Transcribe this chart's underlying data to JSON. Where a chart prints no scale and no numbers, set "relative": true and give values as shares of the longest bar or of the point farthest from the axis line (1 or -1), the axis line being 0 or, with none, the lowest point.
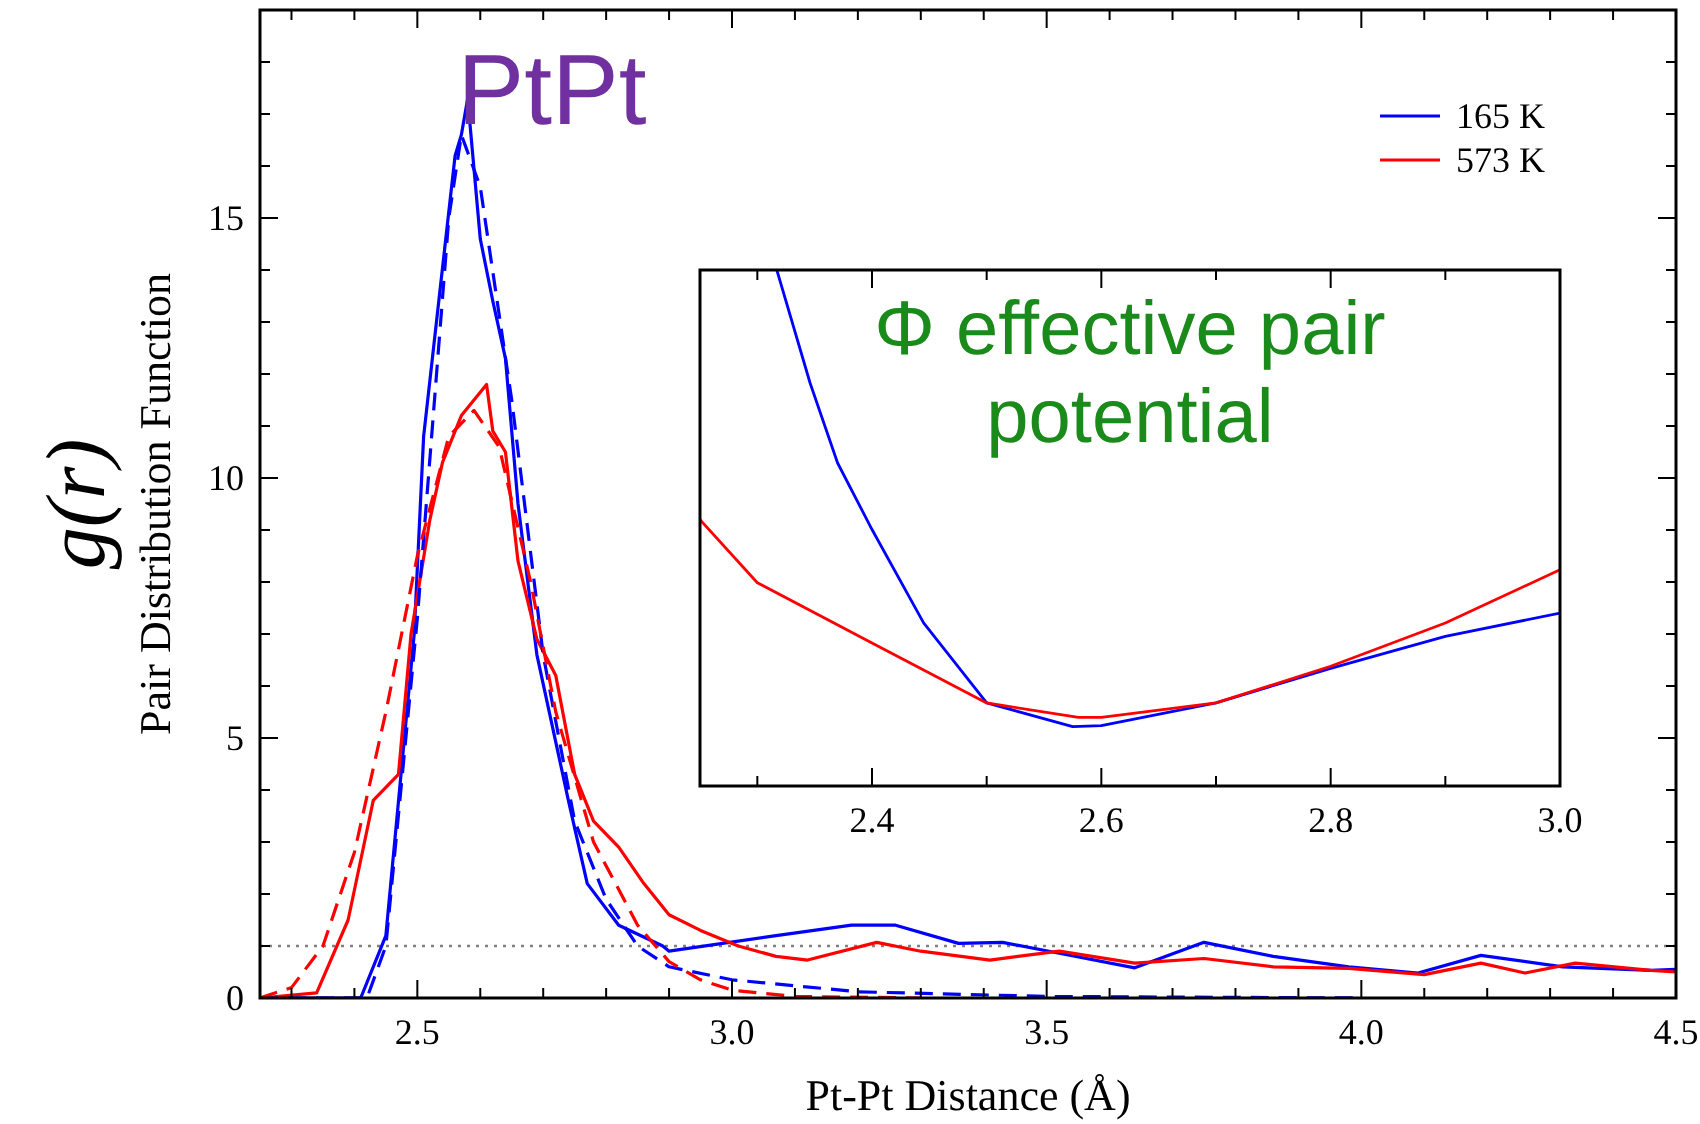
{
  "chart_data": [
    {
      "type": "line",
      "title": "PtPt",
      "xlabel": "Pt-Pt Distance (Å)",
      "ylabel": "Pair Distribution Function",
      "annotations": [
        "g(r)"
      ],
      "xlim": [
        2.25,
        4.5
      ],
      "ylim": [
        0,
        19
      ],
      "xticks": [
        {
          "value": 2.3,
          "label": null
        },
        {
          "value": 2.4,
          "label": null
        },
        2.5,
        {
          "value": 2.6,
          "label": null
        },
        {
          "value": 2.7,
          "label": null
        },
        {
          "value": 2.8,
          "label": null
        },
        {
          "value": 2.9,
          "label": null
        },
        {
          "value": 3.0,
          "label": "3.0"
        },
        {
          "value": 3.1,
          "label": null
        },
        {
          "value": 3.2,
          "label": null
        },
        {
          "value": 3.3,
          "label": null
        },
        {
          "value": 3.4,
          "label": null
        },
        3.5,
        {
          "value": 3.6,
          "label": null
        },
        {
          "value": 3.7,
          "label": null
        },
        {
          "value": 3.8,
          "label": null
        },
        {
          "value": 3.9,
          "label": null
        },
        {
          "value": 4.0,
          "label": "4.0"
        },
        {
          "value": 4.1,
          "label": null
        },
        {
          "value": 4.2,
          "label": null
        },
        {
          "value": 4.3,
          "label": null
        },
        {
          "value": 4.4,
          "label": null
        },
        4.5
      ],
      "yticks": [
        0,
        {
          "value": 1,
          "label": null
        },
        {
          "value": 2,
          "label": null
        },
        {
          "value": 3,
          "label": null
        },
        {
          "value": 4,
          "label": null
        },
        5,
        {
          "value": 6,
          "label": null
        },
        {
          "value": 7,
          "label": null
        },
        {
          "value": 8,
          "label": null
        },
        {
          "value": 9,
          "label": null
        },
        10,
        {
          "value": 11,
          "label": null
        },
        {
          "value": 12,
          "label": null
        },
        {
          "value": 13,
          "label": null
        },
        {
          "value": 14,
          "label": null
        },
        15,
        {
          "value": 16,
          "label": null
        },
        {
          "value": 17,
          "label": null
        },
        {
          "value": 18,
          "label": null
        }
      ],
      "legend": "top right",
      "ref_lines": [
        {
          "axis": "y",
          "value": 1,
          "color": "#808080",
          "line_style": "dotted"
        }
      ],
      "series": [
        {
          "name": "165 K",
          "color": "#0000ff",
          "line_style": "solid",
          "x": [
            2.25,
            2.41,
            2.45,
            2.495,
            2.51,
            2.56,
            2.57,
            2.58,
            2.6,
            2.62,
            2.64,
            2.66,
            2.69,
            2.74,
            2.77,
            2.82,
            2.89,
            2.9,
            3.07,
            3.19,
            3.26,
            3.36,
            3.43,
            3.52,
            3.64,
            3.75,
            3.86,
            3.98,
            4.09,
            4.19,
            4.32,
            4.46,
            4.5
          ],
          "values": [
            0,
            0,
            1.2,
            7.0,
            10.8,
            16.2,
            16.6,
            17.3,
            14.6,
            13.4,
            12.3,
            9.5,
            6.6,
            3.8,
            2.2,
            1.4,
            1.0,
            0.9,
            1.2,
            1.4,
            1.4,
            1.05,
            1.07,
            0.86,
            0.58,
            1.07,
            0.8,
            0.6,
            0.48,
            0.82,
            0.6,
            0.53,
            0.55
          ]
        },
        {
          "name": "573 K",
          "color": "#ff0000",
          "line_style": "solid",
          "x": [
            2.25,
            2.34,
            2.39,
            2.43,
            2.47,
            2.49,
            2.52,
            2.54,
            2.57,
            2.61,
            2.62,
            2.64,
            2.66,
            2.69,
            2.72,
            2.75,
            2.78,
            2.82,
            2.86,
            2.9,
            2.95,
            3.01,
            3.07,
            3.12,
            3.23,
            3.3,
            3.41,
            3.52,
            3.64,
            3.75,
            3.86,
            3.98,
            4.1,
            4.19,
            4.26,
            4.34,
            4.46,
            4.5
          ],
          "values": [
            0,
            0.1,
            1.5,
            3.8,
            4.3,
            7.0,
            9.2,
            10.3,
            11.2,
            11.8,
            10.9,
            10.5,
            8.4,
            6.9,
            6.2,
            4.3,
            3.4,
            2.9,
            2.2,
            1.6,
            1.3,
            1.0,
            0.8,
            0.73,
            1.07,
            0.9,
            0.73,
            0.9,
            0.67,
            0.76,
            0.6,
            0.57,
            0.45,
            0.67,
            0.48,
            0.67,
            0.53,
            0.5
          ]
        },
        {
          "color": "#0000ff",
          "line_style": "dashed",
          "x": [
            2.25,
            2.42,
            2.45,
            2.5,
            2.55,
            2.57,
            2.6,
            2.65,
            2.7,
            2.75,
            2.8,
            2.85,
            2.9,
            3.0,
            3.2,
            3.5,
            4.0
          ],
          "values": [
            0,
            0,
            1.0,
            7.3,
            15.0,
            16.6,
            15.6,
            11.5,
            6.6,
            3.4,
            1.9,
            1.0,
            0.6,
            0.35,
            0.12,
            0.03,
            0
          ]
        },
        {
          "color": "#ff0000",
          "line_style": "dashed",
          "x": [
            2.25,
            2.3,
            2.35,
            2.4,
            2.45,
            2.5,
            2.55,
            2.59,
            2.63,
            2.68,
            2.72,
            2.78,
            2.85,
            2.9,
            2.95,
            3.0,
            3.1,
            3.3
          ],
          "values": [
            0,
            0.2,
            1.0,
            2.8,
            5.5,
            8.5,
            10.8,
            11.3,
            10.6,
            8.0,
            5.5,
            3.0,
            1.4,
            0.7,
            0.35,
            0.15,
            0.03,
            0
          ]
        }
      ]
    },
    {
      "type": "line",
      "title": "Φ effective pair potential",
      "relative": true,
      "xlim": [
        2.25,
        3.0
      ],
      "xticks": [
        {
          "value": 2.3,
          "label": null
        },
        2.4,
        {
          "value": 2.5,
          "label": null
        },
        2.6,
        {
          "value": 2.7,
          "label": null
        },
        2.8,
        {
          "value": 2.9,
          "label": null
        },
        {
          "value": 3.0,
          "label": "3.0"
        }
      ],
      "series": [
        {
          "color": "#0000ff",
          "x": [
            2.317,
            2.346,
            2.37,
            2.4,
            2.445,
            2.5,
            2.575,
            2.6,
            2.7,
            2.8,
            2.9,
            3.0
          ],
          "values": [
            1.0,
            0.781,
            0.626,
            0.497,
            0.316,
            0.161,
            0.115,
            0.117,
            0.161,
            0.228,
            0.29,
            0.335
          ]
        },
        {
          "color": "#ff0000",
          "x": [
            2.25,
            2.3,
            2.4,
            2.5,
            2.58,
            2.6,
            2.7,
            2.8,
            2.9,
            3.0
          ],
          "values": [
            0.516,
            0.394,
            0.277,
            0.161,
            0.133,
            0.133,
            0.161,
            0.232,
            0.316,
            0.419
          ]
        }
      ]
    }
  ]
}
